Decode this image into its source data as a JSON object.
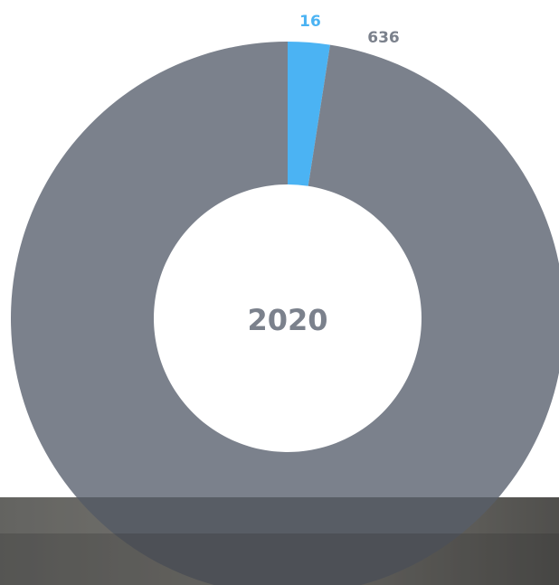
{
  "chart_data": {
    "type": "donut",
    "center_text": "2020",
    "categories": [
      "16",
      "636"
    ],
    "values": [
      16,
      636
    ],
    "colors": [
      "#4bb3f3",
      "#7b818c"
    ]
  }
}
